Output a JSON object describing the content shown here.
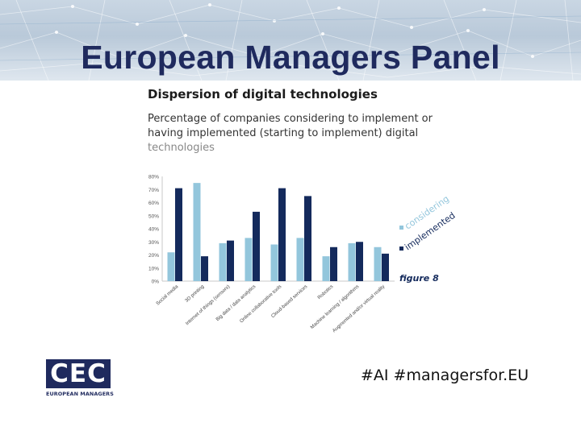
{
  "slide": {
    "title": "European Managers Panel",
    "chart_heading": "Dispersion of digital technologies",
    "chart_description_1": "Percentage of companies considering to implement or having implemented (starting to implement) digital",
    "chart_description_2": "technologies",
    "logo_mark": "CEC",
    "logo_text": "EUROPEAN MANAGERS",
    "hashtag": "#AI #managersfor.EU"
  },
  "colors": {
    "title": "#1f2a5e",
    "considering": "#93c6dc",
    "implemented": "#142a5c",
    "figure_label": "#142a5c"
  },
  "chart_data": {
    "type": "bar",
    "categories": [
      "Social media",
      "3D printing",
      "Internet of things (sensors)",
      "Big data / data analytics",
      "Online collaborative tools",
      "Cloud-based services",
      "Robotics",
      "Machine learning / algorithms",
      "Augmented and/or virtual reality"
    ],
    "series": [
      {
        "name": "considering",
        "values": [
          22,
          75,
          29,
          33,
          28,
          33,
          19,
          29,
          26
        ]
      },
      {
        "name": "implemented",
        "values": [
          71,
          19,
          31,
          53,
          71,
          65,
          26,
          30,
          21
        ]
      }
    ],
    "yticks": [
      "0%",
      "10%",
      "20%",
      "30%",
      "40%",
      "50%",
      "60%",
      "70%",
      "80%"
    ],
    "ylim": [
      0,
      80
    ],
    "grid": false,
    "legend_position": "right",
    "figure_label": "figure 8"
  }
}
